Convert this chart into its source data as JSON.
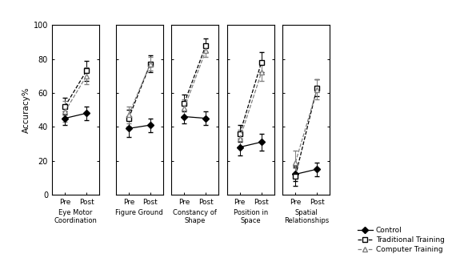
{
  "subplots": [
    {
      "label": "Eye Motor\nCoordination",
      "control": {
        "pre": 45,
        "post": 48,
        "pre_ci": 4,
        "post_ci": 4
      },
      "traditional": {
        "pre": 52,
        "post": 73,
        "pre_ci": 5,
        "post_ci": 6
      },
      "computer": {
        "pre": 49,
        "post": 70,
        "pre_ci": 6,
        "post_ci": 5
      }
    },
    {
      "label": "Figure Ground",
      "control": {
        "pre": 39,
        "post": 41,
        "pre_ci": 5,
        "post_ci": 4
      },
      "traditional": {
        "pre": 45,
        "post": 77,
        "pre_ci": 5,
        "post_ci": 5
      },
      "computer": {
        "pre": 47,
        "post": 77,
        "pre_ci": 5,
        "post_ci": 4
      }
    },
    {
      "label": "Constancy of\nShape",
      "control": {
        "pre": 46,
        "post": 45,
        "pre_ci": 4,
        "post_ci": 4
      },
      "traditional": {
        "pre": 54,
        "post": 88,
        "pre_ci": 5,
        "post_ci": 4
      },
      "computer": {
        "pre": 51,
        "post": 85,
        "pre_ci": 5,
        "post_ci": 4
      }
    },
    {
      "label": "Position in\nSpace",
      "control": {
        "pre": 28,
        "post": 31,
        "pre_ci": 5,
        "post_ci": 5
      },
      "traditional": {
        "pre": 36,
        "post": 78,
        "pre_ci": 5,
        "post_ci": 6
      },
      "computer": {
        "pre": 33,
        "post": 72,
        "pre_ci": 5,
        "post_ci": 5
      }
    },
    {
      "label": "Spatial\nRelationships",
      "control": {
        "pre": 12,
        "post": 15,
        "pre_ci": 4,
        "post_ci": 4
      },
      "traditional": {
        "pre": 11,
        "post": 63,
        "pre_ci": 6,
        "post_ci": 5
      },
      "computer": {
        "pre": 19,
        "post": 62,
        "pre_ci": 7,
        "post_ci": 6
      }
    }
  ],
  "ylabel": "Accuracy%",
  "ylim": [
    0,
    100
  ],
  "yticks": [
    0,
    20,
    40,
    60,
    80,
    100
  ],
  "xtick_labels": [
    "Pre",
    "Post"
  ],
  "bg_color": "white",
  "legend_labels": [
    "Control",
    "Traditional Training",
    "Computer Training"
  ]
}
